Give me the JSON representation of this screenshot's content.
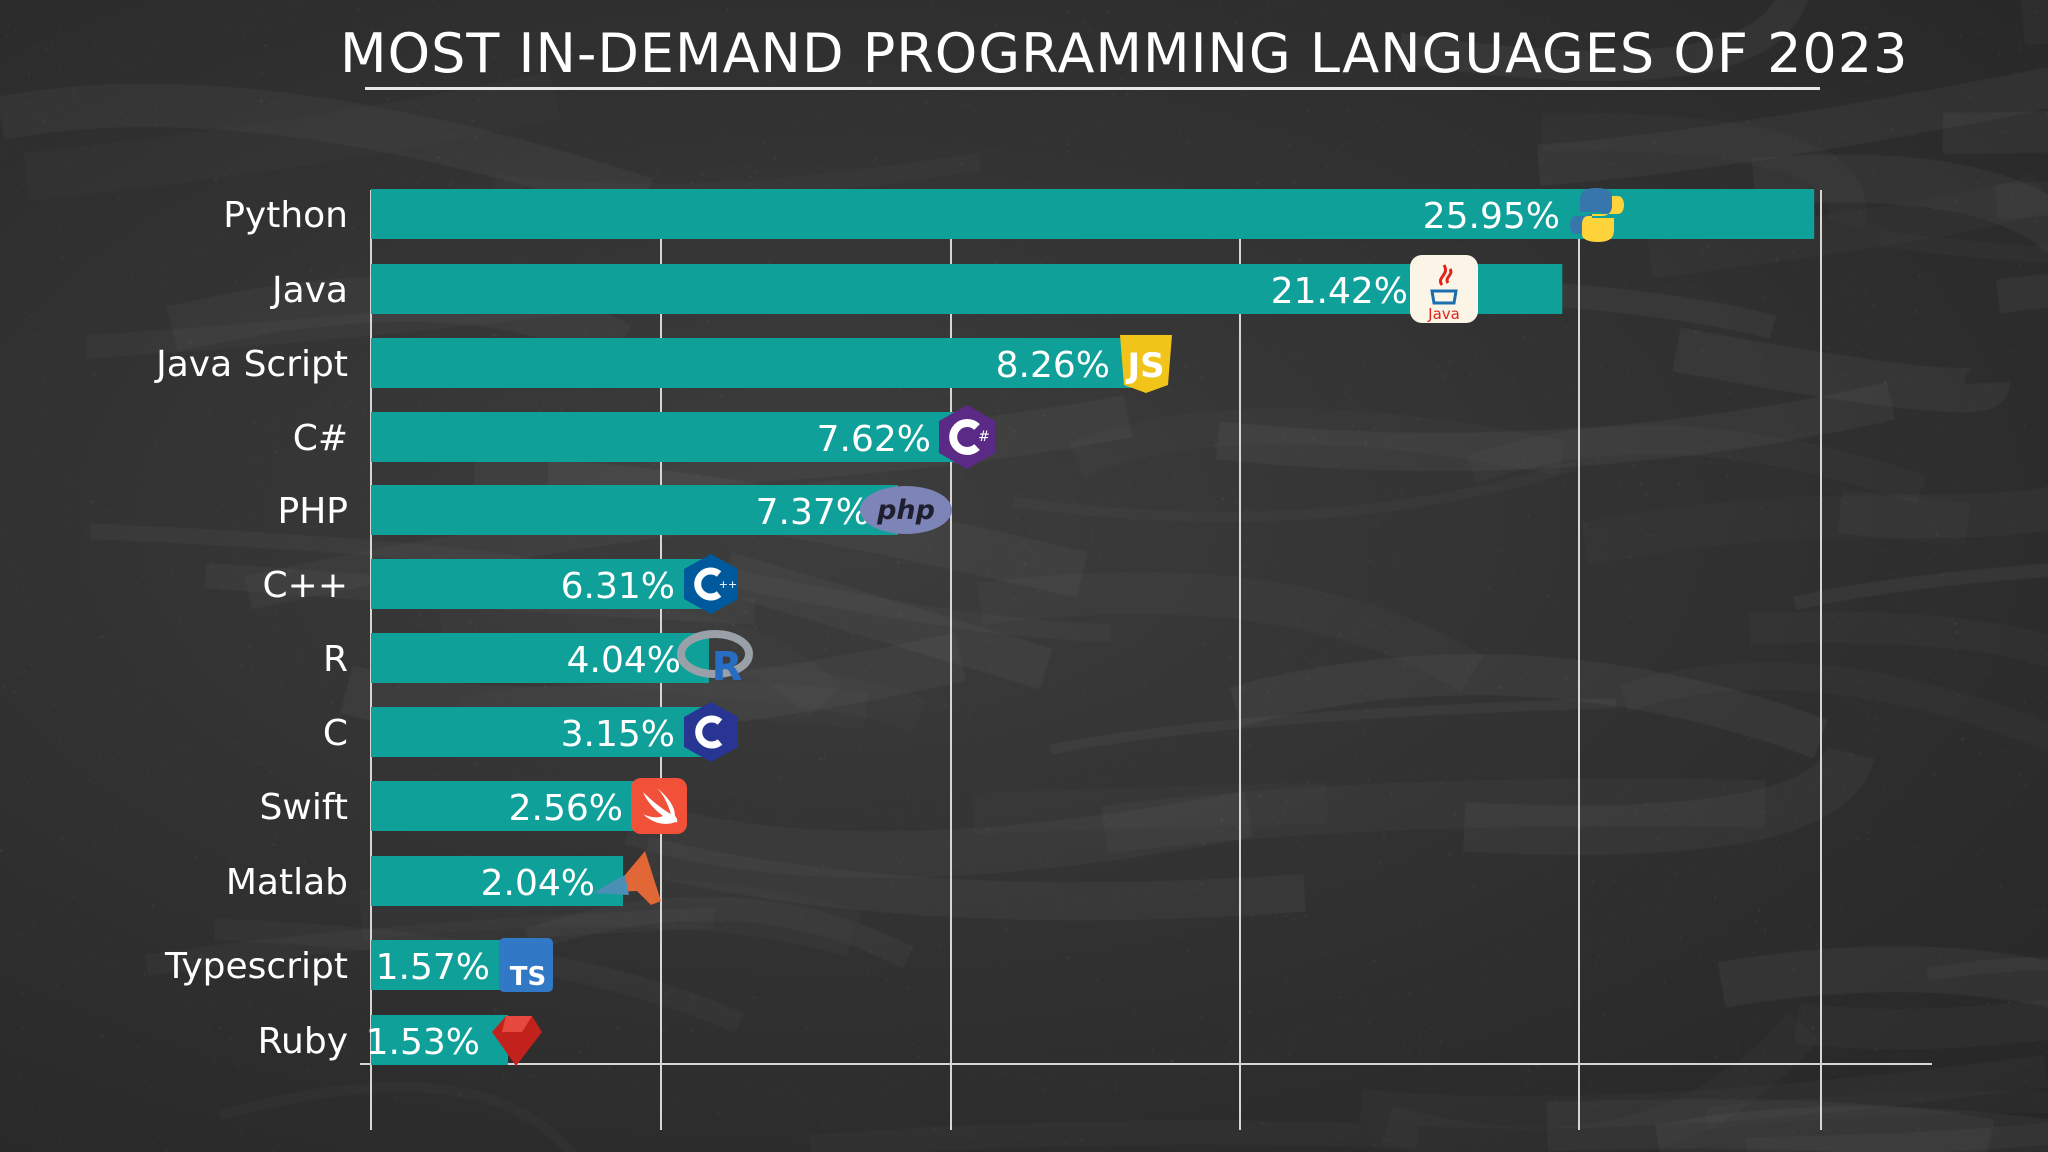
{
  "chart_data": {
    "type": "bar",
    "orientation": "horizontal",
    "title": "MOST IN-DEMAND PROGRAMMING LANGUAGES OF 2023",
    "xlabel": "",
    "ylabel": "",
    "categories": [
      "Python",
      "Java",
      "Java Script",
      "C#",
      "PHP",
      "C++",
      "R",
      "C",
      "Swift",
      "Matlab",
      "Typescript",
      "Ruby"
    ],
    "values": [
      25.95,
      21.42,
      8.26,
      7.62,
      7.37,
      6.31,
      4.04,
      3.15,
      2.56,
      2.04,
      1.57,
      1.53
    ],
    "value_labels": [
      "25.95%",
      "21.42%",
      "8.26%",
      "7.62%",
      "7.37%",
      "6.31%",
      "4.04%",
      "3.15%",
      "2.56%",
      "2.04%",
      "1.57%",
      "1.53%"
    ],
    "icons": [
      "python-icon",
      "java-icon",
      "javascript-icon",
      "csharp-icon",
      "php-icon",
      "cplusplus-icon",
      "r-icon",
      "c-icon",
      "swift-icon",
      "matlab-icon",
      "typescript-icon",
      "ruby-icon"
    ],
    "grid": true,
    "legend": "none",
    "bar_color": "#10a09a",
    "background_color": "#333333"
  }
}
